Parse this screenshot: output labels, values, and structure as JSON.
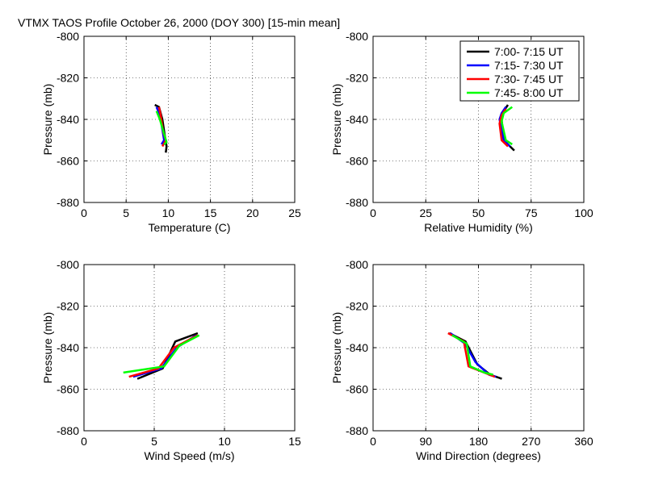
{
  "figure": {
    "title": "VTMX TAOS Profile   October 26, 2000 (DOY 300) [15-min mean]"
  },
  "legend": {
    "placement": "top-right of upper-right panel",
    "entries": [
      {
        "label": "7:00- 7:15 UT",
        "color": "#000000"
      },
      {
        "label": "7:15- 7:30 UT",
        "color": "#0000ff"
      },
      {
        "label": "7:30- 7:45 UT",
        "color": "#ff0000"
      },
      {
        "label": "7:45- 8:00 UT",
        "color": "#00ff00"
      }
    ]
  },
  "chart_data": [
    {
      "type": "line",
      "xlabel": "Temperature (C)",
      "ylabel": "Pressure (mb)",
      "xlim": [
        0,
        25
      ],
      "ylim": [
        -880,
        -800
      ],
      "xticks": [
        0,
        5,
        10,
        15,
        20,
        25
      ],
      "yticks": [
        -880,
        -860,
        -840,
        -820,
        -800
      ],
      "grid": true,
      "series": [
        {
          "color": "#000000",
          "points": [
            [
              8.4,
              -833
            ],
            [
              8.9,
              -834
            ],
            [
              9.3,
              -840
            ],
            [
              9.6,
              -848
            ],
            [
              9.8,
              -853
            ],
            [
              9.7,
              -856
            ]
          ]
        },
        {
          "color": "#0000ff",
          "points": [
            [
              8.6,
              -834
            ],
            [
              9.0,
              -838
            ],
            [
              9.3,
              -845
            ],
            [
              9.5,
              -850
            ],
            [
              9.2,
              -852
            ]
          ]
        },
        {
          "color": "#ff0000",
          "points": [
            [
              8.9,
              -834
            ],
            [
              9.1,
              -838
            ],
            [
              9.4,
              -846
            ],
            [
              9.7,
              -850
            ],
            [
              9.3,
              -853
            ]
          ]
        },
        {
          "color": "#00ff00",
          "points": [
            [
              8.6,
              -836
            ],
            [
              9.0,
              -840
            ],
            [
              9.5,
              -847
            ],
            [
              9.8,
              -851
            ],
            [
              9.5,
              -852
            ]
          ]
        }
      ]
    },
    {
      "type": "line",
      "xlabel": "Relative Humidity (%)",
      "ylabel": "Pressure (mb)",
      "xlim": [
        0,
        100
      ],
      "ylim": [
        -880,
        -800
      ],
      "xticks": [
        0,
        25,
        50,
        75,
        100
      ],
      "yticks": [
        -880,
        -860,
        -840,
        -820,
        -800
      ],
      "grid": true,
      "series": [
        {
          "color": "#000000",
          "points": [
            [
              64,
              -833
            ],
            [
              62,
              -836
            ],
            [
              61,
              -840
            ],
            [
              62,
              -850
            ],
            [
              67,
              -855
            ]
          ]
        },
        {
          "color": "#0000ff",
          "points": [
            [
              63,
              -834
            ],
            [
              61,
              -837
            ],
            [
              60,
              -840
            ],
            [
              62,
              -850
            ],
            [
              65,
              -853
            ]
          ]
        },
        {
          "color": "#ff0000",
          "points": [
            [
              63,
              -835
            ],
            [
              61,
              -838
            ],
            [
              60,
              -842
            ],
            [
              61,
              -850
            ],
            [
              64,
              -853
            ]
          ]
        },
        {
          "color": "#00ff00",
          "points": [
            [
              66,
              -834
            ],
            [
              62,
              -837
            ],
            [
              61,
              -841
            ],
            [
              63,
              -850
            ],
            [
              66,
              -852
            ]
          ]
        }
      ]
    },
    {
      "type": "line",
      "xlabel": "Wind Speed (m/s)",
      "ylabel": "Pressure (mb)",
      "xlim": [
        0,
        15
      ],
      "ylim": [
        -880,
        -800
      ],
      "xticks": [
        0,
        5,
        10,
        15
      ],
      "yticks": [
        -880,
        -860,
        -840,
        -820,
        -800
      ],
      "grid": true,
      "series": [
        {
          "color": "#000000",
          "points": [
            [
              8.1,
              -833
            ],
            [
              6.5,
              -837
            ],
            [
              5.6,
              -850
            ],
            [
              3.8,
              -855
            ]
          ]
        },
        {
          "color": "#0000ff",
          "points": [
            [
              8.0,
              -834
            ],
            [
              6.6,
              -840
            ],
            [
              5.5,
              -850
            ],
            [
              3.5,
              -854
            ]
          ]
        },
        {
          "color": "#ff0000",
          "points": [
            [
              8.1,
              -834
            ],
            [
              6.4,
              -840
            ],
            [
              5.3,
              -850
            ],
            [
              3.2,
              -854
            ]
          ]
        },
        {
          "color": "#00ff00",
          "points": [
            [
              8.2,
              -834
            ],
            [
              6.8,
              -839
            ],
            [
              5.7,
              -849
            ],
            [
              2.8,
              -852
            ]
          ]
        }
      ]
    },
    {
      "type": "line",
      "xlabel": "Wind Direction (degrees)",
      "ylabel": "Pressure (mb)",
      "xlim": [
        0,
        360
      ],
      "ylim": [
        -880,
        -800
      ],
      "xticks": [
        0,
        90,
        180,
        270,
        360
      ],
      "yticks": [
        -880,
        -860,
        -840,
        -820,
        -800
      ],
      "grid": true,
      "series": [
        {
          "color": "#000000",
          "points": [
            [
              130,
              -833
            ],
            [
              158,
              -837
            ],
            [
              178,
              -848
            ],
            [
              200,
              -853
            ],
            [
              220,
              -855
            ]
          ]
        },
        {
          "color": "#0000ff",
          "points": [
            [
              132,
              -833
            ],
            [
              157,
              -838
            ],
            [
              175,
              -847
            ],
            [
              198,
              -853
            ],
            [
              210,
              -854
            ]
          ]
        },
        {
          "color": "#ff0000",
          "points": [
            [
              128,
              -833
            ],
            [
              155,
              -837
            ],
            [
              163,
              -849
            ],
            [
              190,
              -852
            ],
            [
              208,
              -854
            ]
          ]
        },
        {
          "color": "#00ff00",
          "points": [
            [
              135,
              -834
            ],
            [
              160,
              -838
            ],
            [
              166,
              -849
            ],
            [
              190,
              -852
            ],
            [
              205,
              -853
            ]
          ]
        }
      ]
    }
  ]
}
